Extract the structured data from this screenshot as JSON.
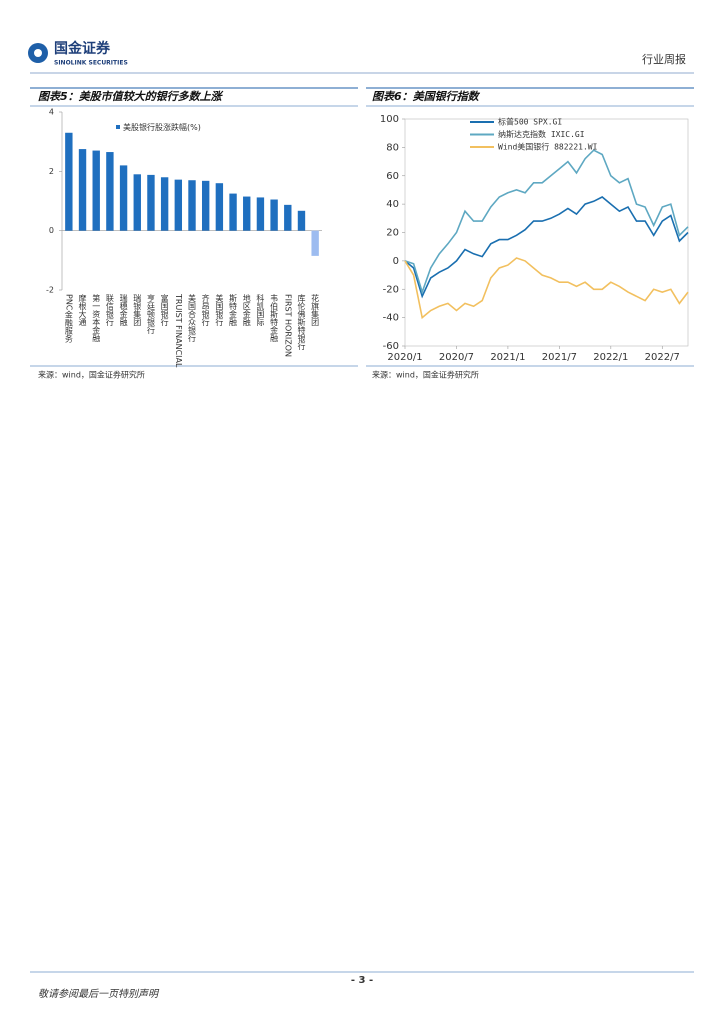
{
  "header": {
    "logo_cn": "国金证券",
    "logo_en": "SINOLINK SECURITIES",
    "section": "行业周报"
  },
  "chart_data": [
    {
      "type": "bar",
      "title": "图表5：美股市值较大的银行多数上涨",
      "legend": "美股银行股涨跌幅(%)",
      "categories": [
        "PNC金融服务",
        "摩根大通",
        "第一资本金融",
        "联信银行",
        "瑞穗金融",
        "瑞银集团",
        "亨廷顿银行",
        "富国银行",
        "TRUIST FINANCIAL",
        "美国合众银行",
        "齐昂银行",
        "美国银行",
        "斯特金融",
        "地区金融",
        "科凯国际",
        "韦伯斯特金融",
        "FIRST HORIZON",
        "库伦佛斯特银行",
        "花旗集团"
      ],
      "values": [
        3.3,
        2.75,
        2.7,
        2.65,
        2.2,
        1.9,
        1.88,
        1.8,
        1.72,
        1.7,
        1.68,
        1.6,
        1.25,
        1.15,
        1.12,
        1.05,
        0.87,
        0.67,
        -0.85
      ],
      "color": "#1f6fbf",
      "negative_color": "#9dbcf0",
      "ylim": [
        -2,
        4
      ],
      "yticks": [
        -2,
        0,
        2,
        4
      ],
      "source": "来源：wind，国金证券研究所"
    },
    {
      "type": "line",
      "title": "图表6：美国银行指数",
      "x": [
        "2020/1",
        "2020/2",
        "2020/3",
        "2020/4",
        "2020/5",
        "2020/6",
        "2020/7",
        "2020/8",
        "2020/9",
        "2020/10",
        "2020/11",
        "2020/12",
        "2021/1",
        "2021/2",
        "2021/3",
        "2021/4",
        "2021/5",
        "2021/6",
        "2021/7",
        "2021/8",
        "2021/9",
        "2021/10",
        "2021/11",
        "2021/12",
        "2022/1",
        "2022/2",
        "2022/3",
        "2022/4",
        "2022/5",
        "2022/6",
        "2022/7",
        "2022/8",
        "2022/9",
        "2022/10"
      ],
      "xticks": [
        "2020/1",
        "2020/7",
        "2021/1",
        "2021/7",
        "2022/1",
        "2022/7"
      ],
      "series": [
        {
          "name": "标普500 SPX.GI",
          "color": "#1a6fb0",
          "values": [
            0,
            -5,
            -25,
            -12,
            -8,
            -5,
            0,
            8,
            5,
            3,
            12,
            15,
            15,
            18,
            22,
            28,
            28,
            30,
            33,
            37,
            33,
            40,
            42,
            45,
            40,
            35,
            38,
            28,
            28,
            18,
            28,
            32,
            14,
            20
          ]
        },
        {
          "name": "纳斯达克指数 IXIC.GI",
          "color": "#5ea8c2",
          "values": [
            0,
            -2,
            -22,
            -5,
            5,
            12,
            20,
            35,
            28,
            28,
            38,
            45,
            48,
            50,
            48,
            55,
            55,
            60,
            65,
            70,
            62,
            72,
            78,
            75,
            60,
            55,
            58,
            40,
            38,
            25,
            38,
            40,
            18,
            24
          ]
        },
        {
          "name": "Wind美国银行 882221.WI",
          "color": "#f2c05f",
          "values": [
            0,
            -10,
            -40,
            -35,
            -32,
            -30,
            -35,
            -30,
            -32,
            -28,
            -12,
            -5,
            -3,
            2,
            0,
            -5,
            -10,
            -12,
            -15,
            -15,
            -18,
            -15,
            -20,
            -20,
            -15,
            -18,
            -22,
            -25,
            -28,
            -20,
            -22,
            -20,
            -30,
            -22
          ]
        }
      ],
      "ylim": [
        -60,
        100
      ],
      "yticks": [
        -60,
        -40,
        -20,
        0,
        20,
        40,
        60,
        80,
        100
      ],
      "source": "来源：wind，国金证券研究所"
    }
  ],
  "footer": {
    "page": "- 3 -",
    "disclaimer": "敬请参阅最后一页特别声明"
  }
}
